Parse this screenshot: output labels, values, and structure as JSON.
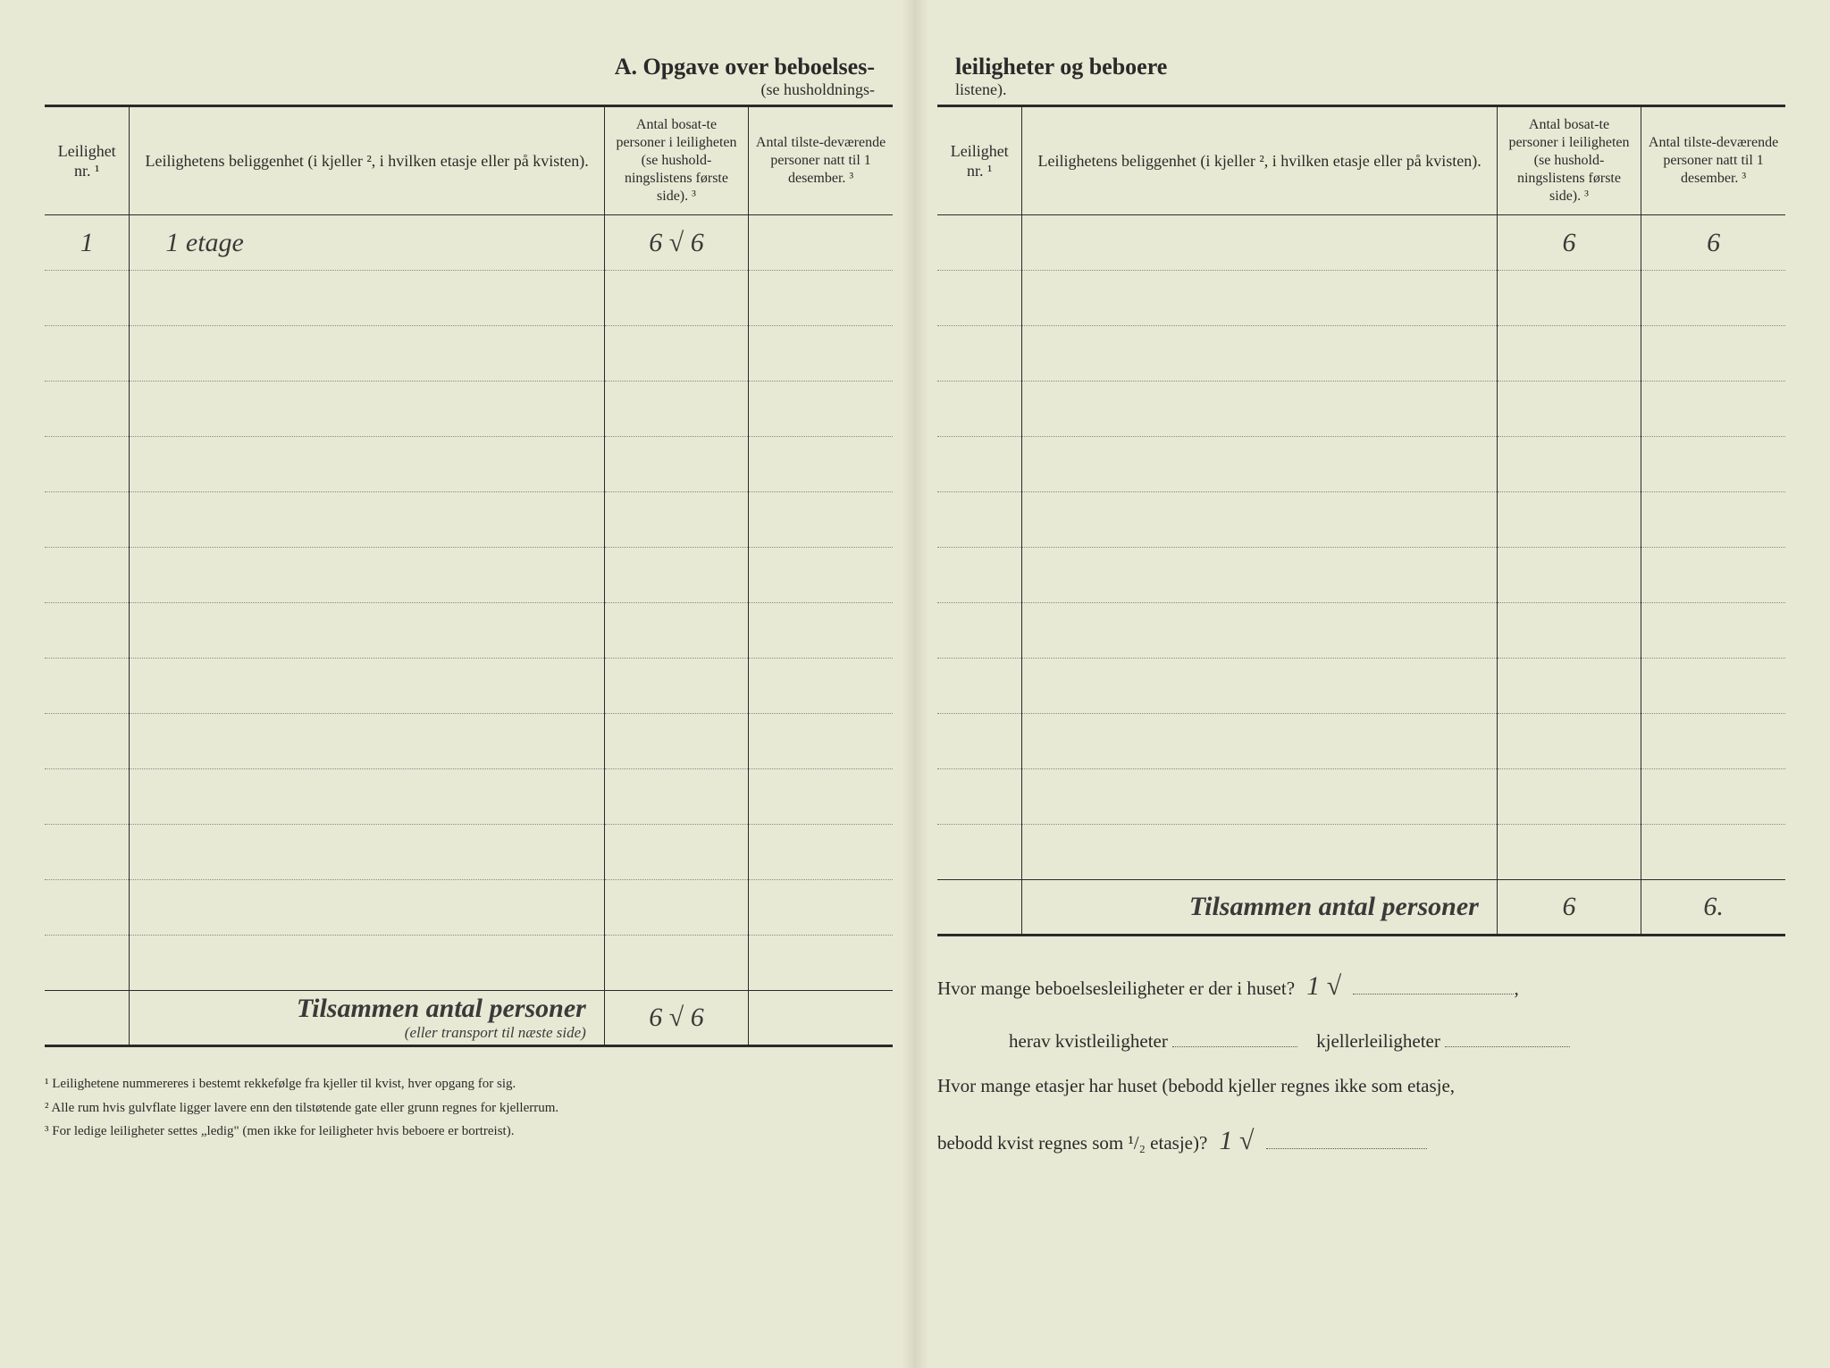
{
  "title_left_main": "A.   Opgave over beboelses-",
  "title_left_sub": "(se husholdnings-",
  "title_right_main": "leiligheter og beboere",
  "title_right_sub": "listene).",
  "headers": {
    "col1": "Leilighet nr. ¹",
    "col2": "Leilighetens beliggenhet (i kjeller ², i hvilken etasje eller på kvisten).",
    "col3": "Antal bosat-te personer i leiligheten (se hushold-ningslistens første side). ³",
    "col4": "Antal tilste-deværende personer natt til 1 desember. ³"
  },
  "left_table": {
    "rows": [
      {
        "nr": "1",
        "loc": "1 etage",
        "v3": "6  √  6",
        "v4": ""
      },
      {},
      {},
      {},
      {},
      {},
      {},
      {},
      {},
      {},
      {},
      {},
      {},
      {}
    ],
    "total_label": "Tilsammen antal personer",
    "total_sub": "(eller transport til næste side)",
    "total_v3": "6  √  6",
    "total_v4": ""
  },
  "right_table": {
    "rows": [
      {
        "nr": "",
        "loc": "",
        "v3": "6",
        "v4": "6"
      },
      {},
      {},
      {},
      {},
      {},
      {},
      {},
      {},
      {},
      {},
      {}
    ],
    "total_label": "Tilsammen antal personer",
    "total_v3": "6",
    "total_v4": "6."
  },
  "footnotes": {
    "f1": "¹  Leilighetene nummereres i bestemt rekkefølge fra kjeller til kvist, hver opgang for sig.",
    "f2": "²  Alle rum hvis gulvflate ligger lavere enn den tilstøtende gate eller grunn regnes for kjellerrum.",
    "f3": "³  For ledige leiligheter settes „ledig\" (men ikke for leiligheter hvis beboere er bortreist)."
  },
  "questions": {
    "q1_a": "Hvor mange beboelsesleiligheter er der i huset?",
    "q1_ans": "1 √",
    "q2_a": "herav kvistleiligheter",
    "q2_b": "kjellerleiligheter",
    "q3_a": "Hvor mange etasjer har huset (bebodd kjeller regnes ikke som etasje,",
    "q3_b": "bebodd kvist regnes som ¹/₂ etasje)?",
    "q3_ans": "1   √"
  },
  "colors": {
    "bg": "#e8e9d4",
    "ink": "#2a2a2a",
    "hand": "#3a3a3a"
  }
}
